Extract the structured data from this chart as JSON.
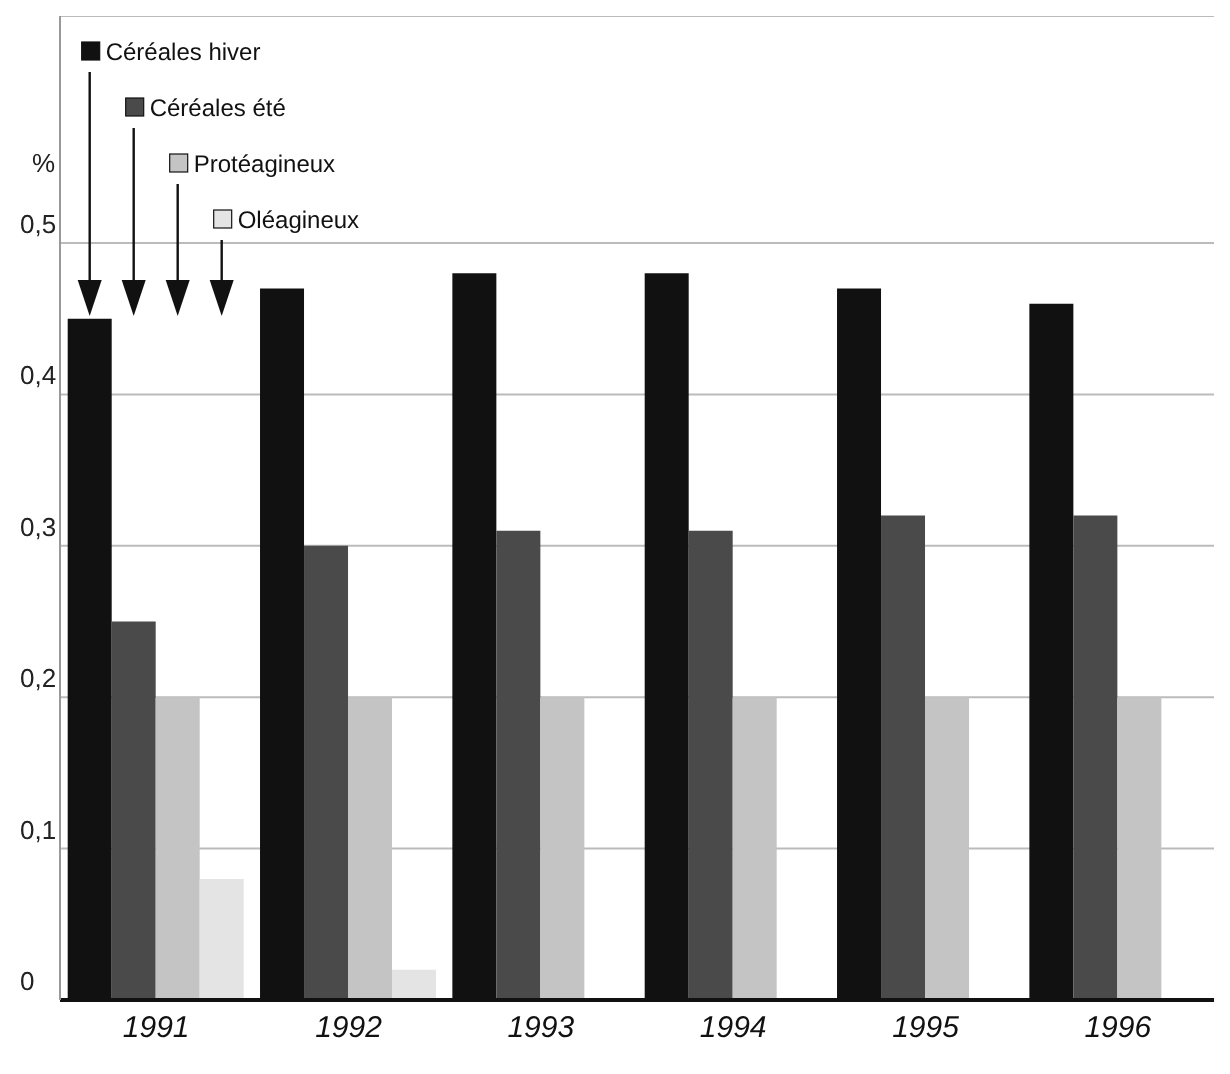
{
  "chart_data": {
    "type": "bar",
    "ylabel": "%",
    "categories": [
      "1991",
      "1992",
      "1993",
      "1994",
      "1995",
      "1996"
    ],
    "series": [
      {
        "name": "Céréales hiver",
        "color": "#111111",
        "values": [
          0.45,
          0.47,
          0.48,
          0.48,
          0.47,
          0.46
        ]
      },
      {
        "name": "Céréales été",
        "color": "#4a4a4a",
        "values": [
          0.25,
          0.3,
          0.31,
          0.31,
          0.32,
          0.32
        ]
      },
      {
        "name": "Protéagineux",
        "color": "#c4c4c4",
        "values": [
          0.2,
          0.2,
          0.2,
          0.2,
          0.2,
          0.2
        ]
      },
      {
        "name": "Oléagineux",
        "color": "#e4e4e4",
        "values": [
          0.08,
          0.02,
          0,
          0,
          0,
          0
        ]
      }
    ],
    "ylim": [
      0,
      0.65
    ],
    "yticks": [
      {
        "value": 0,
        "label": "0"
      },
      {
        "value": 0.1,
        "label": "0,1"
      },
      {
        "value": 0.2,
        "label": "0,2"
      },
      {
        "value": 0.3,
        "label": "0,3"
      },
      {
        "value": 0.4,
        "label": "0,4"
      },
      {
        "value": 0.5,
        "label": "0,5"
      }
    ],
    "grid": "y",
    "legend": "top left"
  }
}
